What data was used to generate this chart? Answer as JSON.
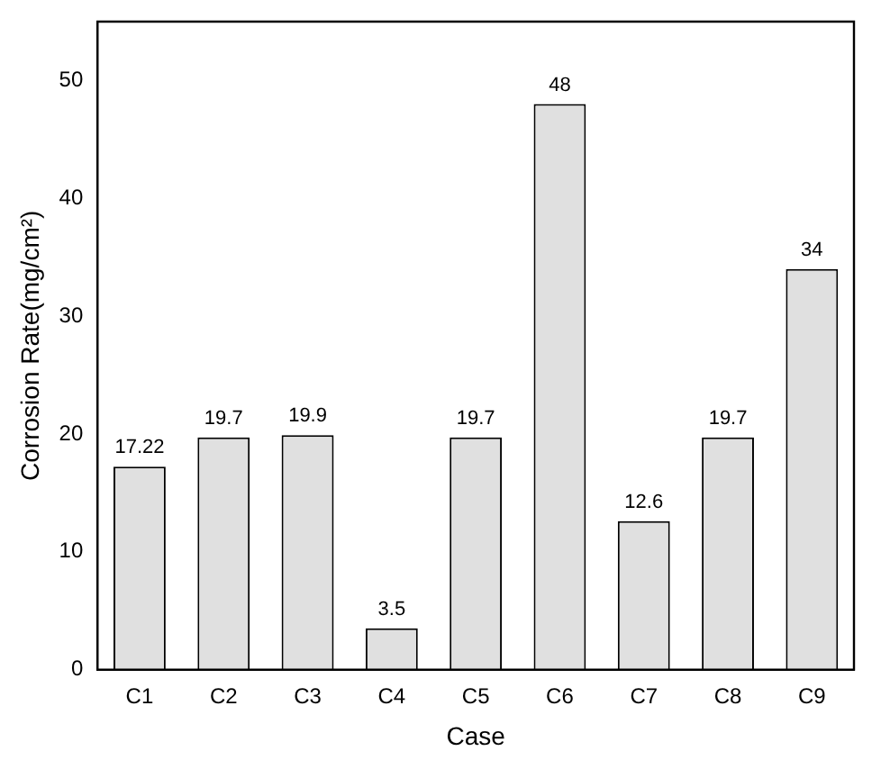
{
  "chart_data": {
    "type": "bar",
    "xlabel": "Case",
    "ylabel": "Corrosion Rate(mg/cm²)",
    "categories": [
      "C1",
      "C2",
      "C3",
      "C4",
      "C5",
      "C6",
      "C7",
      "C8",
      "C9"
    ],
    "values": [
      17.22,
      19.7,
      19.9,
      3.5,
      19.7,
      48,
      12.6,
      19.7,
      34
    ],
    "color": "#e0e0e0",
    "ylim": [
      0,
      55
    ],
    "yticks": [
      0,
      10,
      20,
      30,
      40,
      50
    ],
    "grid": false,
    "legend": false,
    "data_labels": true
  }
}
